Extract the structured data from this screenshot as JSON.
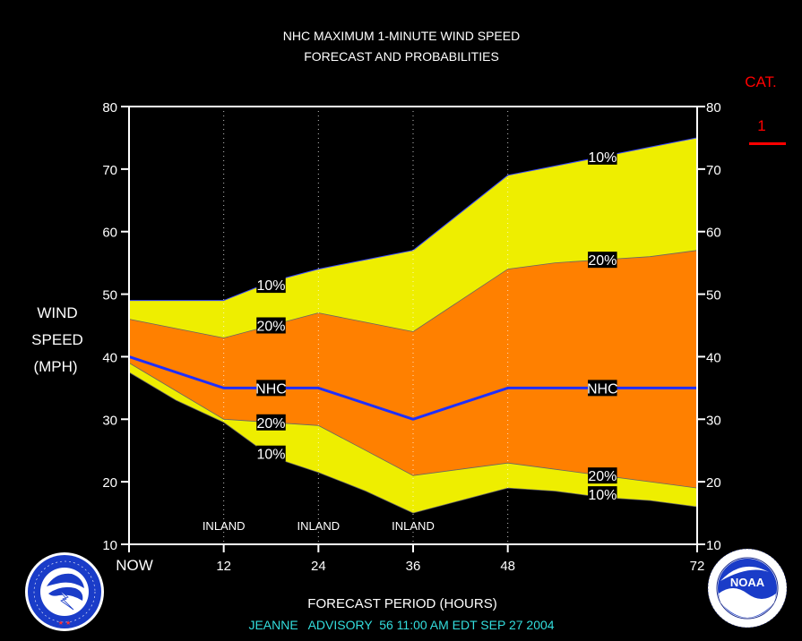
{
  "chart_data": {
    "type": "area",
    "title": "NHC MAXIMUM 1-MINUTE WIND SPEED",
    "subtitle": "FORECAST AND PROBABILITIES",
    "ylabel_lines": [
      "WIND",
      "SPEED",
      "(MPH)"
    ],
    "xlabel": "FORECAST PERIOD (HOURS)",
    "advisory": "JEANNE   ADVISORY  56 11:00 AM EDT SEP 27 2004",
    "category_label": "CAT.",
    "category_value": "1",
    "xlim": [
      0,
      72
    ],
    "ylim": [
      10,
      80
    ],
    "x_ticks": [
      0,
      12,
      24,
      36,
      48,
      72
    ],
    "x_tick_labels": [
      "NOW",
      "12",
      "24",
      "36",
      "48",
      "72"
    ],
    "y_ticks": [
      10,
      20,
      30,
      40,
      50,
      60,
      70,
      80
    ],
    "inland_label": "INLAND",
    "inland_hours": [
      12,
      24,
      36
    ],
    "dotted_lines_hours": [
      12,
      24,
      36,
      48
    ],
    "x": [
      0,
      6,
      12,
      18,
      24,
      30,
      36,
      42,
      48,
      54,
      60,
      66,
      72
    ],
    "series": [
      {
        "name": "10%",
        "band": "upper",
        "values": [
          49,
          49,
          49,
          52,
          54,
          55.5,
          57,
          63,
          69,
          70.5,
          72,
          73.5,
          75
        ]
      },
      {
        "name": "20%",
        "band": "upper",
        "values": [
          46,
          44.5,
          43,
          45,
          47,
          45.5,
          44,
          49,
          54,
          55,
          55.5,
          56,
          57
        ]
      },
      {
        "name": "NHC",
        "band": "forecast",
        "values": [
          40,
          37.5,
          35,
          35,
          35,
          32.5,
          30,
          32.5,
          35,
          35,
          35,
          35,
          35
        ]
      },
      {
        "name": "20%",
        "band": "lower",
        "values": [
          39,
          34.5,
          30,
          29.5,
          29,
          25,
          21,
          22,
          23,
          22,
          21,
          20,
          19
        ]
      },
      {
        "name": "10%",
        "band": "lower",
        "values": [
          37.5,
          33,
          29.5,
          24,
          21.5,
          18.5,
          15,
          17,
          19,
          18.5,
          17.5,
          17,
          16
        ]
      }
    ],
    "series_labels": [
      {
        "text": "10%",
        "x": 18,
        "y": 51.5
      },
      {
        "text": "20%",
        "x": 18,
        "y": 45
      },
      {
        "text": "NHC",
        "x": 18,
        "y": 35
      },
      {
        "text": "20%",
        "x": 18,
        "y": 29.5
      },
      {
        "text": "10%",
        "x": 18,
        "y": 24.5
      },
      {
        "text": "10%",
        "x": 60,
        "y": 72
      },
      {
        "text": "20%",
        "x": 60,
        "y": 55.5
      },
      {
        "text": "NHC",
        "x": 60,
        "y": 35
      },
      {
        "text": "20%",
        "x": 60,
        "y": 21
      },
      {
        "text": "10%",
        "x": 60,
        "y": 18
      }
    ],
    "colors": {
      "background": "#000000",
      "band_outer": "#eeee00",
      "band_inner": "#ff8000",
      "forecast_line": "#1f2fff",
      "category": "#ff0000",
      "advisory_text": "#33dddd",
      "frame": "#ffffff"
    }
  },
  "logos": {
    "left": {
      "icon": "nws-logo-icon",
      "ring_text": "NATIONAL WEATHER SERVICE"
    },
    "right": {
      "icon": "noaa-logo-icon",
      "ring_text": "NATIONAL OCEANIC AND ATMOSPHERIC ADMINISTRATION",
      "center_text": "NOAA"
    }
  }
}
